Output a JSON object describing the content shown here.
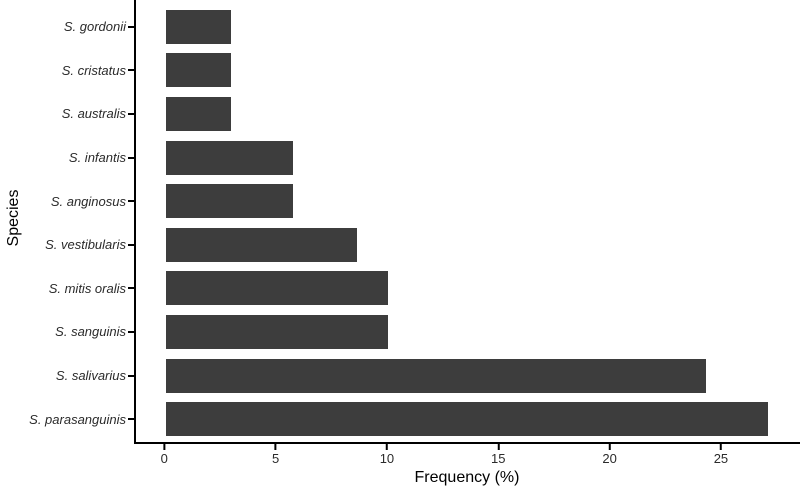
{
  "chart_data": {
    "type": "bar",
    "orientation": "horizontal",
    "title": "",
    "xlabel": "Frequency (%)",
    "ylabel": "Species",
    "categories": [
      "S. gordonii",
      "S. cristatus",
      "S. australis",
      "S. infantis",
      "S. anginosus",
      "S. vestibularis",
      "S. mitis oralis",
      "S. sanguinis",
      "S. salivarius",
      "S. parasanguinis"
    ],
    "values": [
      2.9,
      2.9,
      2.9,
      5.7,
      5.7,
      8.6,
      10.0,
      10.0,
      24.3,
      27.1
    ],
    "x_ticks": [
      0,
      5,
      10,
      15,
      20,
      25
    ],
    "x_view_min": -1.36,
    "x_view_max": 28.55,
    "grid": false,
    "legend": false,
    "bar_color": "#3d3d3d",
    "axis_color": "#000000",
    "text_color": "#2b2b2b"
  }
}
